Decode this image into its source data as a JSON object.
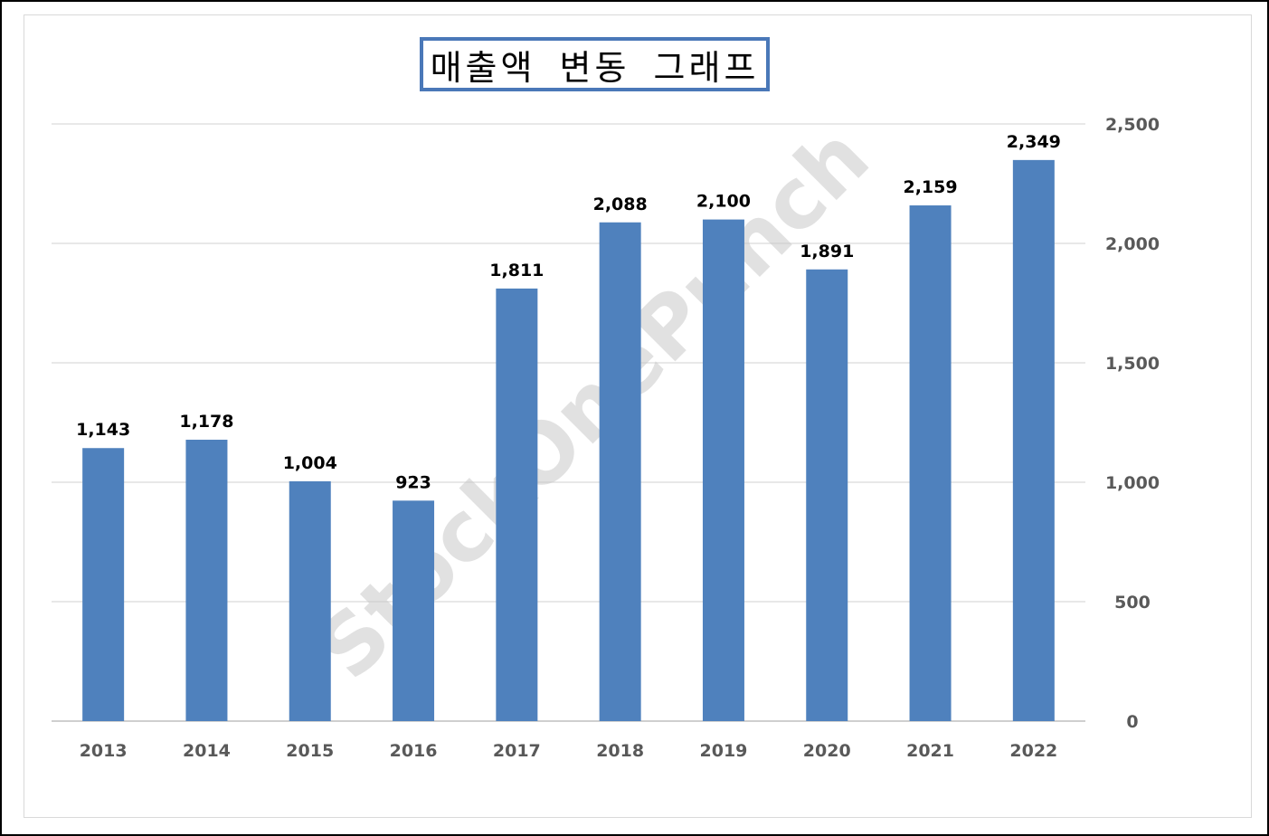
{
  "chart_data": {
    "type": "bar",
    "title": "매출액 변동 그래프",
    "categories": [
      "2013",
      "2014",
      "2015",
      "2016",
      "2017",
      "2018",
      "2019",
      "2020",
      "2021",
      "2022"
    ],
    "values": [
      1143,
      1178,
      1004,
      923,
      1811,
      2088,
      2100,
      1891,
      2159,
      2349
    ],
    "value_labels": [
      "1,143",
      "1,178",
      "1,004",
      "923",
      "1,811",
      "2,088",
      "2,100",
      "1,891",
      "2,159",
      "2,349"
    ],
    "ylim": [
      0,
      2500
    ],
    "yticks": [
      0,
      500,
      1000,
      1500,
      2000,
      2500
    ],
    "ytick_labels": [
      "0",
      "500",
      "1,000",
      "1,500",
      "2,000",
      "2,500"
    ],
    "y_axis_side": "right",
    "grid": true,
    "legend": "none",
    "bar_color": "#4f81bd",
    "watermark": "StockOnePunch"
  }
}
